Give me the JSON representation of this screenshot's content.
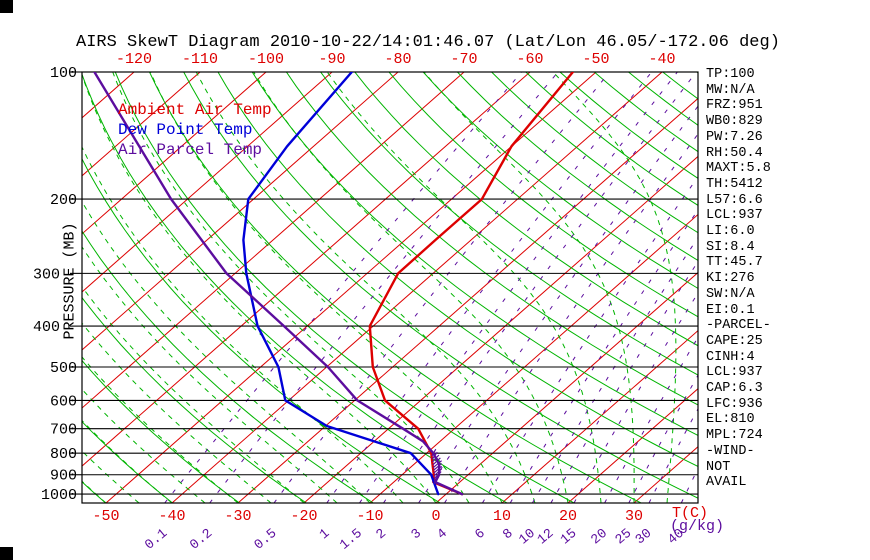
{
  "window": {
    "title": "AIRS SkewT Diagram 2010-10-22/14:01:46.07 (Lat/Lon 46.05/-172.06 deg)"
  },
  "legend": {
    "ambient": "Ambient Air Temp",
    "dew": "Dew Point Temp",
    "parcel": "Air Parcel Temp"
  },
  "axes": {
    "pressure_label": "PRESSURE (MB)",
    "temp_label": "T(C)",
    "mixing_label": "(g/kg)",
    "pressure_ticks": [
      100,
      200,
      300,
      400,
      500,
      600,
      700,
      800,
      900,
      1000
    ],
    "top_temp_ticks": [
      -120,
      -110,
      -100,
      -90,
      -80,
      -70,
      -60,
      -50,
      -40
    ],
    "bottom_temp_ticks": [
      -50,
      -40,
      -30,
      -20,
      -10,
      0,
      10,
      20,
      30
    ]
  },
  "panel": {
    "items": [
      "TP:100",
      "MW:N/A",
      "FRZ:951",
      "WB0:829",
      "PW:7.26",
      "RH:50.4",
      "MAXT:5.8",
      "TH:5412",
      "L57:6.6",
      "LCL:937",
      "LI:6.0",
      "SI:8.4",
      "TT:45.7",
      "KI:276",
      "SW:N/A",
      "EI:0.1",
      "-PARCEL-",
      "CAPE:25",
      "CINH:4",
      "LCL:937",
      "CAP:6.3",
      "LFC:936",
      "EL:810",
      "MPL:724",
      "-WIND-",
      "NOT",
      "AVAIL"
    ]
  },
  "colors": {
    "isotherm": "#dd0000",
    "adiabat": "#00b400",
    "mixing_ratio": "#5c0d9e",
    "pressure_line": "#000000",
    "ambient": "#dd0000",
    "dew_point": "#0000d8",
    "parcel": "#5c0d9e"
  },
  "chart_data": {
    "type": "line",
    "subtype": "skewt-log-p",
    "title": "AIRS SkewT Diagram 2010-10-22/14:01:46.07 (Lat/Lon 46.05/-172.06 deg)",
    "pressure_range_mb": [
      100,
      1050
    ],
    "pressure_gridlines_mb": [
      100,
      200,
      300,
      400,
      500,
      600,
      700,
      800,
      900,
      1000
    ],
    "isotherms_c": {
      "min": -130,
      "max": 40,
      "step": 10
    },
    "dry_adiabats_theta_k": {
      "min": 210,
      "max": 470,
      "step": 10
    },
    "moist_adiabats_surface_c": {
      "min": -60,
      "max": 45,
      "step": 5
    },
    "mixing_ratio_g_kg": [
      0.1,
      0.2,
      0.5,
      1,
      1.5,
      2,
      3,
      4,
      6,
      8,
      10,
      12,
      15,
      20,
      25,
      30,
      40
    ],
    "cape_hatch_p_mb": [
      930,
      790
    ],
    "series": [
      {
        "name": "Ambient Air Temp",
        "color": "#dd0000",
        "points_p_t": [
          [
            100,
            -53.5
          ],
          [
            150,
            -50.0
          ],
          [
            200,
            -45.4
          ],
          [
            250,
            -45.4
          ],
          [
            300,
            -45.3
          ],
          [
            400,
            -40.5
          ],
          [
            500,
            -33.0
          ],
          [
            600,
            -25.4
          ],
          [
            700,
            -15.5
          ],
          [
            800,
            -9.3
          ],
          [
            850,
            -7.2
          ],
          [
            900,
            -5.2
          ],
          [
            937,
            -4.0
          ],
          [
            1000,
            2.4
          ]
        ]
      },
      {
        "name": "Dew Point Temp",
        "color": "#0000d8",
        "points_p_t": [
          [
            100,
            -87.0
          ],
          [
            150,
            -84.0
          ],
          [
            200,
            -80.8
          ],
          [
            250,
            -74.5
          ],
          [
            300,
            -68.3
          ],
          [
            400,
            -57.5
          ],
          [
            500,
            -47.3
          ],
          [
            600,
            -40.5
          ],
          [
            690,
            -29.8
          ],
          [
            800,
            -12.4
          ],
          [
            900,
            -5.6
          ],
          [
            1000,
            -1.2
          ]
        ]
      },
      {
        "name": "Air Parcel Temp",
        "color": "#5c0d9e",
        "points_p_t": [
          [
            100,
            -126.0
          ],
          [
            200,
            -92.5
          ],
          [
            300,
            -71.3
          ],
          [
            400,
            -53.5
          ],
          [
            500,
            -39.8
          ],
          [
            600,
            -29.6
          ],
          [
            700,
            -17.8
          ],
          [
            750,
            -12.6
          ],
          [
            800,
            -9.0
          ],
          [
            850,
            -6.2
          ],
          [
            900,
            -4.4
          ],
          [
            937,
            -3.7
          ],
          [
            1000,
            2.4
          ]
        ]
      }
    ]
  }
}
